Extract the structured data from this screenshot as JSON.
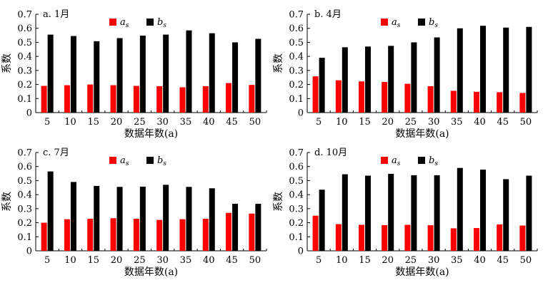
{
  "chart_data": [
    {
      "type": "bar",
      "title": "a. 1月",
      "xlabel": "数据年数(a)",
      "ylabel": "系数",
      "ylim": [
        0,
        0.7
      ],
      "yticks": [
        "0",
        "0.1",
        "0.2",
        "0.3",
        "0.4",
        "0.5",
        "0.6",
        "0.7"
      ],
      "categories": [
        "5",
        "10",
        "15",
        "20",
        "25",
        "30",
        "35",
        "40",
        "45",
        "50"
      ],
      "legend_position": "top",
      "series": [
        {
          "name": "as",
          "name_base": "a",
          "name_sub": "s",
          "color": "#ff0000",
          "values": [
            0.19,
            0.195,
            0.2,
            0.195,
            0.19,
            0.188,
            0.18,
            0.188,
            0.21,
            0.197
          ]
        },
        {
          "name": "bs",
          "name_base": "b",
          "name_sub": "s",
          "color": "#000000",
          "values": [
            0.555,
            0.545,
            0.508,
            0.53,
            0.548,
            0.555,
            0.585,
            0.565,
            0.5,
            0.525
          ]
        }
      ]
    },
    {
      "type": "bar",
      "title": "b. 4月",
      "xlabel": "数据年数(a)",
      "ylabel": "系数",
      "ylim": [
        0,
        0.7
      ],
      "yticks": [
        "0",
        "0.1",
        "0.2",
        "0.3",
        "0.4",
        "0.5",
        "0.6",
        "0.7"
      ],
      "categories": [
        "5",
        "10",
        "15",
        "20",
        "25",
        "30",
        "35",
        "40",
        "45",
        "50"
      ],
      "legend_position": "top",
      "series": [
        {
          "name": "as",
          "name_base": "a",
          "name_sub": "s",
          "color": "#ff0000",
          "values": [
            0.258,
            0.23,
            0.222,
            0.218,
            0.205,
            0.188,
            0.155,
            0.148,
            0.145,
            0.14
          ]
        },
        {
          "name": "bs",
          "name_base": "b",
          "name_sub": "s",
          "color": "#000000",
          "values": [
            0.39,
            0.465,
            0.47,
            0.475,
            0.5,
            0.535,
            0.6,
            0.618,
            0.605,
            0.61
          ]
        }
      ]
    },
    {
      "type": "bar",
      "title": "c. 7月",
      "xlabel": "数据年数(a)",
      "ylabel": "系数",
      "ylim": [
        0,
        0.7
      ],
      "yticks": [
        "0",
        "0.1",
        "0.2",
        "0.3",
        "0.4",
        "0.5",
        "0.6",
        "0.7"
      ],
      "categories": [
        "5",
        "10",
        "15",
        "20",
        "25",
        "30",
        "35",
        "40",
        "45",
        "50"
      ],
      "legend_position": "top",
      "series": [
        {
          "name": "as",
          "name_base": "a",
          "name_sub": "s",
          "color": "#ff0000",
          "values": [
            0.2,
            0.225,
            0.228,
            0.232,
            0.228,
            0.22,
            0.225,
            0.228,
            0.27,
            0.265
          ]
        },
        {
          "name": "bs",
          "name_base": "b",
          "name_sub": "s",
          "color": "#000000",
          "values": [
            0.565,
            0.49,
            0.462,
            0.455,
            0.457,
            0.47,
            0.455,
            0.445,
            0.335,
            0.335
          ]
        }
      ]
    },
    {
      "type": "bar",
      "title": "d. 10月",
      "xlabel": "数据年数(a)",
      "ylabel": "系数",
      "ylim": [
        0,
        0.7
      ],
      "yticks": [
        "0",
        "0.1",
        "0.2",
        "0.3",
        "0.4",
        "0.5",
        "0.6",
        "0.7"
      ],
      "categories": [
        "5",
        "10",
        "15",
        "20",
        "25",
        "30",
        "35",
        "40",
        "45",
        "50"
      ],
      "legend_position": "top",
      "series": [
        {
          "name": "as",
          "name_base": "a",
          "name_sub": "s",
          "color": "#ff0000",
          "values": [
            0.25,
            0.19,
            0.185,
            0.183,
            0.185,
            0.182,
            0.16,
            0.162,
            0.188,
            0.18
          ]
        },
        {
          "name": "bs",
          "name_base": "b",
          "name_sub": "s",
          "color": "#000000",
          "values": [
            0.435,
            0.545,
            0.535,
            0.548,
            0.538,
            0.538,
            0.59,
            0.578,
            0.51,
            0.535
          ]
        }
      ]
    }
  ]
}
